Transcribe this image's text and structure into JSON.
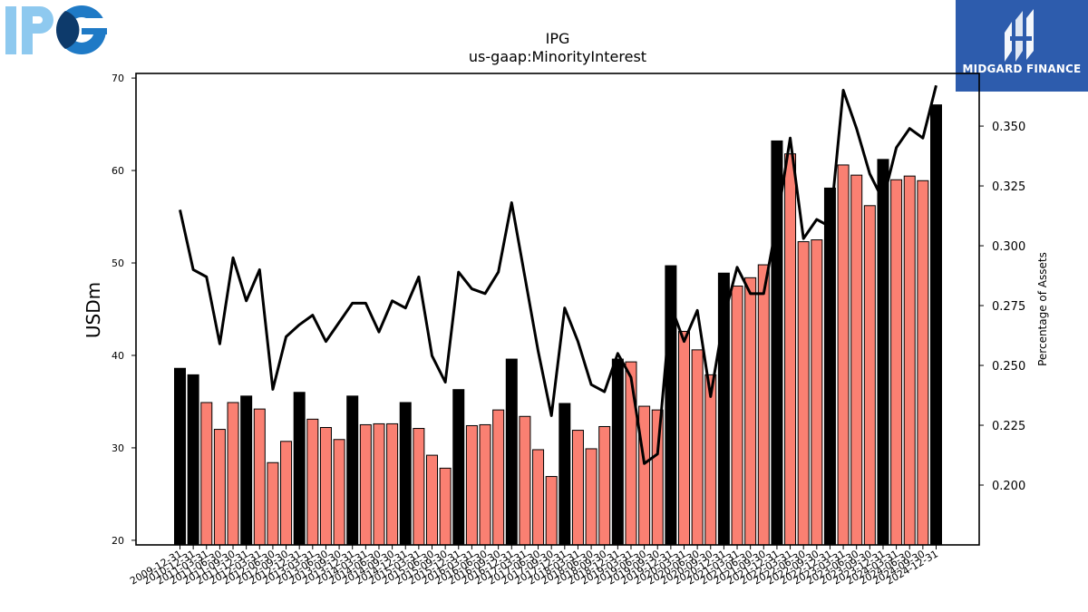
{
  "logos": {
    "left": {
      "text": "IPG",
      "icon": "ipg-logo-icon",
      "colors": [
        "#8ec9ef",
        "#1f7ac6",
        "#0d3a6b"
      ]
    },
    "right": {
      "text": "MIDGARD FINANCE",
      "icon": "midgard-finance-logo-icon",
      "background": "#2d5cad"
    }
  },
  "chart_data": {
    "type": "bar",
    "title": "IPG",
    "subtitle": "us-gaap:MinorityInterest",
    "ylabel": "USDm",
    "y2label": "Percentage of Assets",
    "ylim": [
      19.5,
      70.5
    ],
    "y2lim": [
      0.175,
      0.372
    ],
    "yticks": [
      "20",
      "30",
      "40",
      "50",
      "60",
      "70"
    ],
    "y2ticks": [
      "0.200",
      "0.225",
      "0.250",
      "0.275",
      "0.300",
      "0.325",
      "0.350"
    ],
    "grid": false,
    "colors": {
      "annual": "#000000",
      "quarterly": "#fa8072",
      "line": "#000000"
    },
    "categories": [
      "2009-12-31",
      "2010-12-31",
      "2011-03-31",
      "2011-06-30",
      "2011-09-30",
      "2011-12-31",
      "2012-03-31",
      "2012-06-30",
      "2012-09-30",
      "2012-12-31",
      "2013-03-31",
      "2013-06-30",
      "2013-09-30",
      "2013-12-31",
      "2014-03-31",
      "2014-06-30",
      "2014-09-30",
      "2014-12-31",
      "2015-03-31",
      "2015-06-30",
      "2015-09-30",
      "2015-12-31",
      "2016-03-31",
      "2016-06-30",
      "2016-09-30",
      "2016-12-31",
      "2017-03-31",
      "2017-06-30",
      "2017-09-30",
      "2017-12-31",
      "2018-03-31",
      "2018-06-30",
      "2018-09-30",
      "2018-12-31",
      "2019-03-31",
      "2019-06-30",
      "2019-09-30",
      "2019-12-31",
      "2020-03-31",
      "2020-06-30",
      "2020-09-30",
      "2020-12-31",
      "2021-03-31",
      "2021-06-30",
      "2021-09-30",
      "2021-12-31",
      "2022-03-31",
      "2022-06-30",
      "2022-09-30",
      "2022-12-31",
      "2023-03-31",
      "2023-06-30",
      "2023-09-30",
      "2023-12-31",
      "2024-03-31",
      "2024-06-30",
      "2024-09-30",
      "2024-12-31"
    ],
    "series": [
      {
        "kind": "bar",
        "values": [
          38.6,
          37.9,
          34.9,
          32.0,
          34.9,
          35.6,
          34.2,
          28.4,
          30.7,
          36.0,
          33.1,
          32.2,
          30.9,
          35.6,
          32.5,
          32.6,
          32.6,
          34.9,
          32.1,
          29.2,
          27.8,
          36.3,
          32.4,
          32.5,
          34.1,
          39.6,
          33.4,
          29.8,
          26.9,
          34.8,
          31.9,
          29.9,
          32.3,
          39.6,
          39.3,
          34.5,
          34.1,
          49.7,
          42.6,
          40.6,
          37.9,
          48.9,
          47.5,
          48.4,
          49.8,
          63.2,
          61.8,
          52.3,
          52.5,
          58.1,
          60.6,
          59.5,
          56.2,
          61.2,
          59.0,
          59.4,
          58.9,
          67.1
        ],
        "annual": [
          true,
          true,
          false,
          false,
          false,
          true,
          false,
          false,
          false,
          true,
          false,
          false,
          false,
          true,
          false,
          false,
          false,
          true,
          false,
          false,
          false,
          true,
          false,
          false,
          false,
          true,
          false,
          false,
          false,
          true,
          false,
          false,
          false,
          true,
          false,
          false,
          false,
          true,
          false,
          false,
          false,
          true,
          false,
          false,
          false,
          true,
          false,
          false,
          false,
          true,
          false,
          false,
          false,
          true,
          false,
          false,
          false,
          true
        ]
      },
      {
        "kind": "line",
        "axis": "right",
        "values": [
          0.315,
          0.29,
          0.287,
          0.259,
          0.295,
          0.277,
          0.29,
          0.24,
          0.262,
          0.267,
          0.271,
          0.26,
          0.268,
          0.276,
          0.276,
          0.264,
          0.277,
          0.274,
          0.287,
          0.254,
          0.243,
          0.289,
          0.282,
          0.28,
          0.289,
          0.318,
          0.287,
          0.256,
          0.229,
          0.274,
          0.26,
          0.242,
          0.239,
          0.255,
          0.245,
          0.209,
          0.213,
          0.275,
          0.26,
          0.273,
          0.237,
          0.27,
          0.291,
          0.28,
          0.28,
          0.31,
          0.345,
          0.303,
          0.311,
          0.308,
          0.365,
          0.349,
          0.33,
          0.319,
          0.341,
          0.349,
          0.345,
          0.367
        ]
      }
    ]
  }
}
